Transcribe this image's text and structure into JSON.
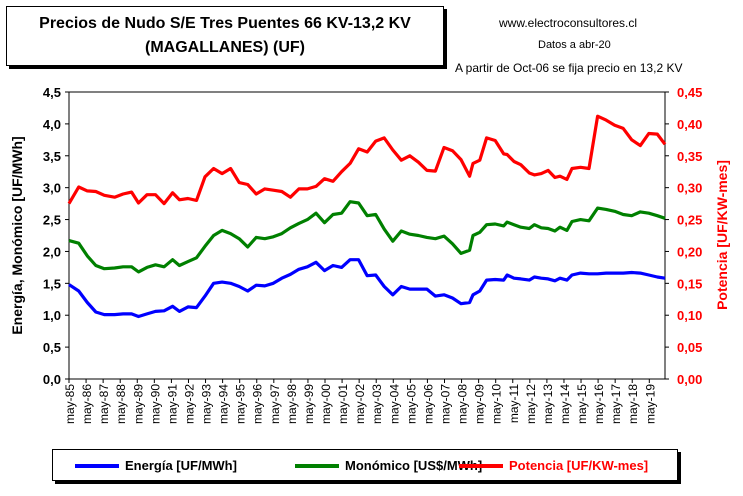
{
  "header": {
    "title_line1": "Precios de Nudo S/E Tres Puentes 66 KV-13,2 KV",
    "title_line2": "(MAGALLANES) (UF)",
    "site": "www.electroconsultores.cl",
    "date_note": "Datos a abr-20",
    "voltage_note": "A partir de Oct-06 se fija precio en 13,2 KV"
  },
  "chart_data": {
    "type": "line",
    "title": "Precios de Nudo S/E Tres Puentes 66 KV-13,2 KV (MAGALLANES) (UF)",
    "xlabel": "",
    "ylabel_left": "Energía, Monómico [UF/MWh]",
    "ylabel_right": "Potencia [UF/KW-mes]",
    "ylim_left": [
      0,
      4.5
    ],
    "ylim_right": [
      0,
      0.45
    ],
    "yticks_left": [
      "0,0",
      "0,5",
      "1,0",
      "1,5",
      "2,0",
      "2,5",
      "3,0",
      "3,5",
      "4,0",
      "4,5"
    ],
    "yticks_right": [
      "0,00",
      "0,05",
      "0,10",
      "0,15",
      "0,20",
      "0,25",
      "0,30",
      "0,35",
      "0,40",
      "0,45"
    ],
    "x_start": 1985.33,
    "x_end": 2020.25,
    "xtick_labels": [
      "may-85",
      "may-86",
      "may-87",
      "may-88",
      "may-89",
      "may-90",
      "may-91",
      "may-92",
      "may-93",
      "may-94",
      "may-95",
      "may-96",
      "may-97",
      "may-98",
      "may-99",
      "may-00",
      "may-01",
      "may-02",
      "may-03",
      "may-04",
      "may-05",
      "may-06",
      "may-07",
      "may-08",
      "may-09",
      "may-10",
      "may-11",
      "may-12",
      "may-13",
      "may-14",
      "may-15",
      "may-16",
      "may-17",
      "may-18",
      "may-19"
    ],
    "grid": false,
    "legend_position": "bottom",
    "series": [
      {
        "name": "Energía [UF/MWh]",
        "axis": "left",
        "color": "#0000ff",
        "points": [
          [
            1985.33,
            1.48
          ],
          [
            1985.9,
            1.38
          ],
          [
            1986.4,
            1.2
          ],
          [
            1986.9,
            1.05
          ],
          [
            1987.4,
            1.01
          ],
          [
            1988.0,
            1.01
          ],
          [
            1988.5,
            1.02
          ],
          [
            1989.0,
            1.02
          ],
          [
            1989.4,
            0.98
          ],
          [
            1989.9,
            1.02
          ],
          [
            1990.4,
            1.06
          ],
          [
            1990.9,
            1.07
          ],
          [
            1991.4,
            1.14
          ],
          [
            1991.8,
            1.06
          ],
          [
            1992.3,
            1.13
          ],
          [
            1992.8,
            1.12
          ],
          [
            1993.3,
            1.3
          ],
          [
            1993.8,
            1.5
          ],
          [
            1994.3,
            1.52
          ],
          [
            1994.8,
            1.5
          ],
          [
            1995.3,
            1.45
          ],
          [
            1995.8,
            1.38
          ],
          [
            1996.3,
            1.47
          ],
          [
            1996.8,
            1.46
          ],
          [
            1997.3,
            1.5
          ],
          [
            1997.8,
            1.58
          ],
          [
            1998.3,
            1.64
          ],
          [
            1998.8,
            1.72
          ],
          [
            1999.3,
            1.76
          ],
          [
            1999.8,
            1.83
          ],
          [
            2000.3,
            1.7
          ],
          [
            2000.8,
            1.78
          ],
          [
            2001.3,
            1.75
          ],
          [
            2001.8,
            1.87
          ],
          [
            2002.3,
            1.87
          ],
          [
            2002.8,
            1.62
          ],
          [
            2003.3,
            1.63
          ],
          [
            2003.8,
            1.45
          ],
          [
            2004.3,
            1.32
          ],
          [
            2004.8,
            1.45
          ],
          [
            2005.3,
            1.41
          ],
          [
            2005.8,
            1.41
          ],
          [
            2006.3,
            1.41
          ],
          [
            2006.8,
            1.3
          ],
          [
            2007.3,
            1.32
          ],
          [
            2007.8,
            1.27
          ],
          [
            2008.3,
            1.18
          ],
          [
            2008.8,
            1.2
          ],
          [
            2009.0,
            1.32
          ],
          [
            2009.4,
            1.38
          ],
          [
            2009.8,
            1.55
          ],
          [
            2010.3,
            1.56
          ],
          [
            2010.8,
            1.55
          ],
          [
            2011.0,
            1.63
          ],
          [
            2011.4,
            1.58
          ],
          [
            2011.8,
            1.57
          ],
          [
            2012.3,
            1.55
          ],
          [
            2012.6,
            1.6
          ],
          [
            2013.0,
            1.58
          ],
          [
            2013.4,
            1.57
          ],
          [
            2013.8,
            1.54
          ],
          [
            2014.1,
            1.58
          ],
          [
            2014.5,
            1.55
          ],
          [
            2014.8,
            1.63
          ],
          [
            2015.3,
            1.66
          ],
          [
            2015.8,
            1.65
          ],
          [
            2016.3,
            1.65
          ],
          [
            2016.8,
            1.66
          ],
          [
            2017.3,
            1.66
          ],
          [
            2017.8,
            1.66
          ],
          [
            2018.3,
            1.67
          ],
          [
            2018.8,
            1.66
          ],
          [
            2019.3,
            1.63
          ],
          [
            2019.8,
            1.6
          ],
          [
            2020.25,
            1.58
          ]
        ]
      },
      {
        "name": "Monómico [US$/MWh]",
        "axis": "left",
        "color": "#008000",
        "points": [
          [
            1985.33,
            2.17
          ],
          [
            1985.9,
            2.13
          ],
          [
            1986.4,
            1.93
          ],
          [
            1986.9,
            1.78
          ],
          [
            1987.4,
            1.73
          ],
          [
            1988.0,
            1.74
          ],
          [
            1988.5,
            1.76
          ],
          [
            1989.0,
            1.76
          ],
          [
            1989.4,
            1.68
          ],
          [
            1989.9,
            1.75
          ],
          [
            1990.4,
            1.79
          ],
          [
            1990.9,
            1.76
          ],
          [
            1991.4,
            1.87
          ],
          [
            1991.8,
            1.78
          ],
          [
            1992.3,
            1.84
          ],
          [
            1992.8,
            1.9
          ],
          [
            1993.3,
            2.08
          ],
          [
            1993.8,
            2.25
          ],
          [
            1994.3,
            2.33
          ],
          [
            1994.8,
            2.28
          ],
          [
            1995.3,
            2.2
          ],
          [
            1995.8,
            2.07
          ],
          [
            1996.3,
            2.22
          ],
          [
            1996.8,
            2.2
          ],
          [
            1997.3,
            2.23
          ],
          [
            1997.8,
            2.28
          ],
          [
            1998.3,
            2.37
          ],
          [
            1998.8,
            2.44
          ],
          [
            1999.3,
            2.5
          ],
          [
            1999.8,
            2.6
          ],
          [
            2000.3,
            2.45
          ],
          [
            2000.8,
            2.58
          ],
          [
            2001.3,
            2.6
          ],
          [
            2001.8,
            2.78
          ],
          [
            2002.3,
            2.76
          ],
          [
            2002.8,
            2.56
          ],
          [
            2003.3,
            2.58
          ],
          [
            2003.8,
            2.35
          ],
          [
            2004.3,
            2.16
          ],
          [
            2004.8,
            2.32
          ],
          [
            2005.3,
            2.27
          ],
          [
            2005.8,
            2.25
          ],
          [
            2006.3,
            2.22
          ],
          [
            2006.8,
            2.2
          ],
          [
            2007.3,
            2.24
          ],
          [
            2007.8,
            2.12
          ],
          [
            2008.3,
            1.97
          ],
          [
            2008.8,
            2.02
          ],
          [
            2009.0,
            2.25
          ],
          [
            2009.4,
            2.3
          ],
          [
            2009.8,
            2.42
          ],
          [
            2010.3,
            2.43
          ],
          [
            2010.8,
            2.4
          ],
          [
            2011.0,
            2.46
          ],
          [
            2011.4,
            2.42
          ],
          [
            2011.8,
            2.38
          ],
          [
            2012.3,
            2.36
          ],
          [
            2012.6,
            2.42
          ],
          [
            2013.0,
            2.37
          ],
          [
            2013.4,
            2.36
          ],
          [
            2013.8,
            2.32
          ],
          [
            2014.1,
            2.38
          ],
          [
            2014.5,
            2.33
          ],
          [
            2014.8,
            2.47
          ],
          [
            2015.3,
            2.5
          ],
          [
            2015.8,
            2.48
          ],
          [
            2016.3,
            2.68
          ],
          [
            2016.8,
            2.66
          ],
          [
            2017.3,
            2.63
          ],
          [
            2017.8,
            2.58
          ],
          [
            2018.3,
            2.56
          ],
          [
            2018.8,
            2.62
          ],
          [
            2019.3,
            2.6
          ],
          [
            2019.8,
            2.56
          ],
          [
            2020.25,
            2.52
          ]
        ]
      },
      {
        "name": "Potencia [UF/KW-mes]",
        "axis": "right",
        "color": "#ff0000",
        "points": [
          [
            1985.33,
            0.275
          ],
          [
            1985.9,
            0.301
          ],
          [
            1986.4,
            0.295
          ],
          [
            1986.9,
            0.294
          ],
          [
            1987.4,
            0.288
          ],
          [
            1988.0,
            0.285
          ],
          [
            1988.5,
            0.29
          ],
          [
            1989.0,
            0.293
          ],
          [
            1989.4,
            0.276
          ],
          [
            1989.9,
            0.289
          ],
          [
            1990.4,
            0.289
          ],
          [
            1990.9,
            0.275
          ],
          [
            1991.4,
            0.292
          ],
          [
            1991.8,
            0.281
          ],
          [
            1992.3,
            0.283
          ],
          [
            1992.8,
            0.28
          ],
          [
            1993.3,
            0.317
          ],
          [
            1993.8,
            0.33
          ],
          [
            1994.3,
            0.322
          ],
          [
            1994.8,
            0.33
          ],
          [
            1995.3,
            0.308
          ],
          [
            1995.8,
            0.305
          ],
          [
            1996.3,
            0.29
          ],
          [
            1996.8,
            0.298
          ],
          [
            1997.3,
            0.296
          ],
          [
            1997.8,
            0.294
          ],
          [
            1998.3,
            0.285
          ],
          [
            1998.8,
            0.298
          ],
          [
            1999.3,
            0.298
          ],
          [
            1999.8,
            0.302
          ],
          [
            2000.3,
            0.314
          ],
          [
            2000.8,
            0.31
          ],
          [
            2001.3,
            0.325
          ],
          [
            2001.8,
            0.338
          ],
          [
            2002.3,
            0.361
          ],
          [
            2002.8,
            0.356
          ],
          [
            2003.3,
            0.373
          ],
          [
            2003.8,
            0.378
          ],
          [
            2004.3,
            0.359
          ],
          [
            2004.8,
            0.343
          ],
          [
            2005.3,
            0.35
          ],
          [
            2005.8,
            0.34
          ],
          [
            2006.3,
            0.327
          ],
          [
            2006.8,
            0.326
          ],
          [
            2007.3,
            0.363
          ],
          [
            2007.8,
            0.358
          ],
          [
            2008.3,
            0.344
          ],
          [
            2008.8,
            0.318
          ],
          [
            2009.0,
            0.338
          ],
          [
            2009.4,
            0.343
          ],
          [
            2009.8,
            0.378
          ],
          [
            2010.3,
            0.374
          ],
          [
            2010.8,
            0.353
          ],
          [
            2011.0,
            0.352
          ],
          [
            2011.4,
            0.341
          ],
          [
            2011.8,
            0.336
          ],
          [
            2012.3,
            0.323
          ],
          [
            2012.6,
            0.32
          ],
          [
            2013.0,
            0.322
          ],
          [
            2013.4,
            0.327
          ],
          [
            2013.8,
            0.316
          ],
          [
            2014.1,
            0.318
          ],
          [
            2014.5,
            0.313
          ],
          [
            2014.8,
            0.33
          ],
          [
            2015.3,
            0.332
          ],
          [
            2015.8,
            0.33
          ],
          [
            2016.3,
            0.412
          ],
          [
            2016.8,
            0.406
          ],
          [
            2017.3,
            0.398
          ],
          [
            2017.8,
            0.393
          ],
          [
            2018.3,
            0.375
          ],
          [
            2018.8,
            0.366
          ],
          [
            2019.3,
            0.385
          ],
          [
            2019.8,
            0.384
          ],
          [
            2020.25,
            0.368
          ]
        ]
      }
    ]
  }
}
